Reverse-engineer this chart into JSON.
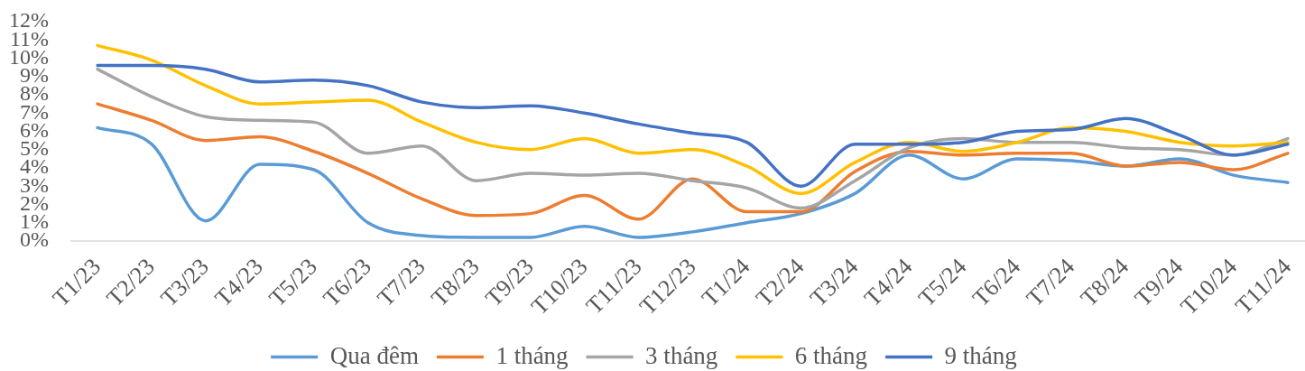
{
  "chart_data": {
    "type": "line",
    "categories": [
      "T1/23",
      "T2/23",
      "T3/23",
      "T4/23",
      "T5/23",
      "T6/23",
      "T7/23",
      "T8/23",
      "T9/23",
      "T10/23",
      "T11/23",
      "T12/23",
      "T1/24",
      "T2/24",
      "T3/24",
      "T4/24",
      "T5/24",
      "T6/24",
      "T7/24",
      "T8/24",
      "T9/24",
      "T10/24",
      "T11/24"
    ],
    "series": [
      {
        "name": "Qua đêm",
        "color": "#5b9bd5",
        "values": [
          6.2,
          5.3,
          1.1,
          4.2,
          3.9,
          1.0,
          0.3,
          0.2,
          0.2,
          0.8,
          0.2,
          0.5,
          1.0,
          1.5,
          2.6,
          4.7,
          3.4,
          4.5,
          4.4,
          4.1,
          4.5,
          3.6,
          3.2
        ]
      },
      {
        "name": "1 tháng",
        "color": "#ed7d31",
        "values": [
          7.5,
          6.6,
          5.5,
          5.7,
          4.9,
          3.7,
          2.3,
          1.4,
          1.5,
          2.5,
          1.2,
          3.4,
          1.6,
          1.6,
          3.8,
          4.9,
          4.7,
          4.8,
          4.8,
          4.1,
          4.3,
          3.9,
          4.8
        ]
      },
      {
        "name": "3 tháng",
        "color": "#a5a5a5",
        "values": [
          9.4,
          7.9,
          6.8,
          6.6,
          6.5,
          4.8,
          5.2,
          3.3,
          3.7,
          3.6,
          3.7,
          3.3,
          2.9,
          1.8,
          3.3,
          5.1,
          5.6,
          5.4,
          5.4,
          5.1,
          5.0,
          4.7,
          5.6
        ]
      },
      {
        "name": "6 tháng",
        "color": "#ffc000",
        "values": [
          10.7,
          9.9,
          8.5,
          7.5,
          7.6,
          7.7,
          6.5,
          5.4,
          5.0,
          5.6,
          4.8,
          5.0,
          4.1,
          2.6,
          4.3,
          5.4,
          4.9,
          5.4,
          6.2,
          6.0,
          5.4,
          5.2,
          5.4
        ]
      },
      {
        "name": "9 tháng",
        "color": "#4472c4",
        "values": [
          9.6,
          9.6,
          9.4,
          8.7,
          8.8,
          8.5,
          7.6,
          7.3,
          7.4,
          7.0,
          6.4,
          5.9,
          5.4,
          3.0,
          5.3,
          5.3,
          5.4,
          6.0,
          6.1,
          6.7,
          5.8,
          4.7,
          5.3
        ]
      }
    ],
    "ylim": [
      0,
      12
    ],
    "yticks": [
      {
        "value": 0,
        "label": "0%"
      },
      {
        "value": 1,
        "label": "1%"
      },
      {
        "value": 2,
        "label": "2%"
      },
      {
        "value": 3,
        "label": "3%"
      },
      {
        "value": 4,
        "label": "4%"
      },
      {
        "value": 5,
        "label": "5%"
      },
      {
        "value": 6,
        "label": "6%"
      },
      {
        "value": 7,
        "label": "7%"
      },
      {
        "value": 8,
        "label": "8%"
      },
      {
        "value": 9,
        "label": "9%"
      },
      {
        "value": 10,
        "label": "10%"
      },
      {
        "value": 11,
        "label": "11%"
      },
      {
        "value": 12,
        "label": "12%"
      }
    ],
    "grid": false,
    "legend": "bottom",
    "marker": "none"
  }
}
